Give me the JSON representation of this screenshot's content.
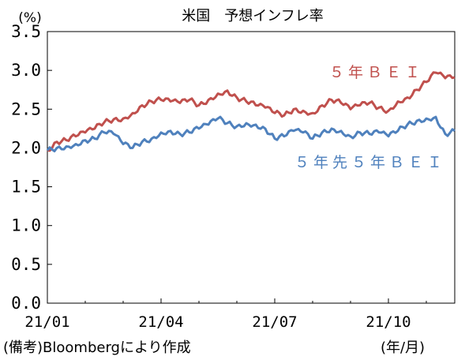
{
  "chart_data": {
    "type": "line",
    "title": "米国　予想インフレ率",
    "ylabel": "(%)",
    "xlabel": "(年/月)",
    "note": "(備考)Bloombergにより作成",
    "ylim": [
      0.0,
      3.5
    ],
    "yticks": [
      "0.0",
      "0.5",
      "1.0",
      "1.5",
      "2.0",
      "2.5",
      "3.0",
      "3.5"
    ],
    "xticks": [
      "21/01",
      "21/04",
      "21/07",
      "21/10"
    ],
    "xrange_months": [
      "21/01",
      "21/11"
    ],
    "grid": false,
    "colors": {
      "bei5y": "#c0504d",
      "bei5y5y": "#4f81bd"
    },
    "series": [
      {
        "name": "５年ＢＥＩ",
        "color": "#c0504d",
        "x": [
          0,
          0.25,
          0.5,
          0.75,
          1.0,
          1.25,
          1.5,
          1.75,
          2.0,
          2.25,
          2.5,
          2.75,
          3.0,
          3.25,
          3.5,
          3.75,
          4.0,
          4.25,
          4.5,
          4.75,
          5.0,
          5.25,
          5.5,
          5.75,
          6.0,
          6.25,
          6.5,
          6.75,
          7.0,
          7.25,
          7.5,
          7.75,
          8.0,
          8.25,
          8.5,
          8.75,
          9.0,
          9.25,
          9.5,
          9.75,
          10.0,
          10.25,
          10.5,
          10.75
        ],
        "values": [
          1.97,
          2.08,
          2.1,
          2.15,
          2.2,
          2.25,
          2.33,
          2.37,
          2.38,
          2.45,
          2.55,
          2.6,
          2.62,
          2.6,
          2.58,
          2.62,
          2.55,
          2.62,
          2.7,
          2.74,
          2.65,
          2.6,
          2.55,
          2.52,
          2.45,
          2.42,
          2.5,
          2.48,
          2.45,
          2.55,
          2.62,
          2.58,
          2.5,
          2.55,
          2.58,
          2.52,
          2.48,
          2.6,
          2.65,
          2.75,
          2.85,
          2.97,
          2.9,
          2.91
        ]
      },
      {
        "name": "５年先５年ＢＥＩ",
        "color": "#4f81bd",
        "x": [
          0,
          0.25,
          0.5,
          0.75,
          1.0,
          1.25,
          1.5,
          1.75,
          2.0,
          2.25,
          2.5,
          2.75,
          3.0,
          3.25,
          3.5,
          3.75,
          4.0,
          4.25,
          4.5,
          4.75,
          5.0,
          5.25,
          5.5,
          5.75,
          6.0,
          6.25,
          6.5,
          6.75,
          7.0,
          7.25,
          7.5,
          7.75,
          8.0,
          8.25,
          8.5,
          8.75,
          9.0,
          9.25,
          9.5,
          9.75,
          10.0,
          10.25,
          10.5,
          10.75
        ],
        "values": [
          1.97,
          2.0,
          2.02,
          2.05,
          2.1,
          2.12,
          2.2,
          2.18,
          2.05,
          2.0,
          2.08,
          2.12,
          2.2,
          2.22,
          2.18,
          2.2,
          2.25,
          2.3,
          2.38,
          2.32,
          2.28,
          2.32,
          2.3,
          2.25,
          2.12,
          2.15,
          2.22,
          2.2,
          2.12,
          2.2,
          2.25,
          2.22,
          2.15,
          2.2,
          2.18,
          2.2,
          2.15,
          2.22,
          2.3,
          2.35,
          2.38,
          2.4,
          2.18,
          2.22
        ]
      }
    ]
  }
}
